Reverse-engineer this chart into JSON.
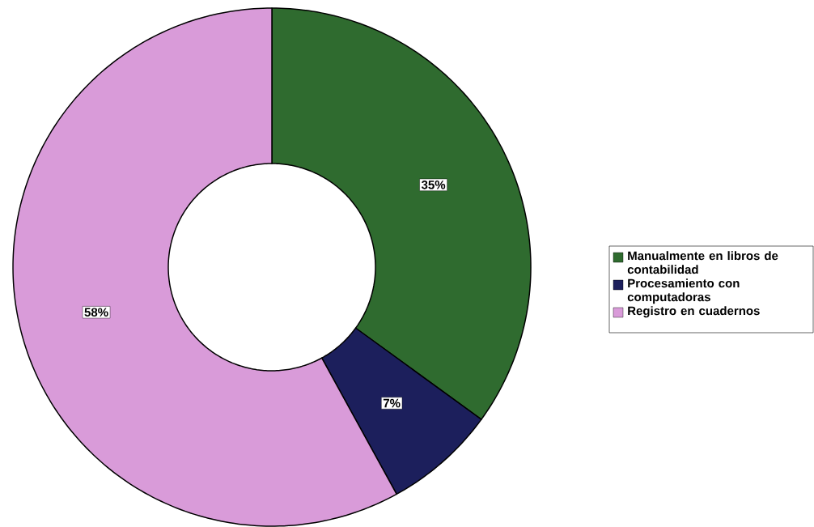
{
  "chart_data": {
    "type": "donut",
    "categories": [
      "Manualmente en libros de contabilidad",
      "Procesamiento con computadoras",
      "Registro en cuadernos"
    ],
    "values": [
      35,
      7,
      58
    ],
    "colors": [
      "#2f6b2f",
      "#1c1f5c",
      "#d99bd9"
    ],
    "value_labels": [
      "35%",
      "7%",
      "58%"
    ],
    "legend": "right"
  }
}
